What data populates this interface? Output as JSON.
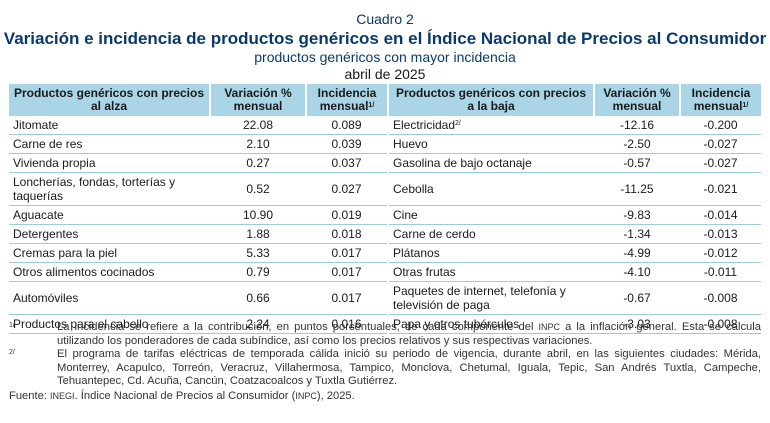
{
  "header": {
    "cuadro": "Cuadro 2",
    "title": "Variación e incidencia de productos genéricos en el Índice Nacional de Precios al Consumidor",
    "subtitle": "productos genéricos con mayor incidencia",
    "period": "abril de 2025"
  },
  "table": {
    "columns": {
      "alza_products": "Productos genéricos con precios al alza",
      "alza_var": "Variación % mensual",
      "alza_inc": "Incidencia mensual",
      "baja_products": "Productos genéricos con precios a la baja",
      "baja_var": "Variación % mensual",
      "baja_inc": "Incidencia mensual",
      "inc_note_mark": "1/"
    },
    "rows": [
      {
        "alza": "Jitomate",
        "alza_var": "22.08",
        "alza_inc": "0.089",
        "baja": "Electricidad",
        "baja_mark": "2/",
        "baja_var": "-12.16",
        "baja_inc": "-0.200"
      },
      {
        "alza": "Carne de res",
        "alza_var": "2.10",
        "alza_inc": "0.039",
        "baja": "Huevo",
        "baja_mark": "",
        "baja_var": "-2.50",
        "baja_inc": "-0.027"
      },
      {
        "alza": "Vivienda propia",
        "alza_var": "0.27",
        "alza_inc": "0.037",
        "baja": "Gasolina de bajo octanaje",
        "baja_mark": "",
        "baja_var": "-0.57",
        "baja_inc": "-0.027"
      },
      {
        "alza": "Loncherías, fondas, torterías y taquerías",
        "alza_var": "0.52",
        "alza_inc": "0.027",
        "baja": "Cebolla",
        "baja_mark": "",
        "baja_var": "-11.25",
        "baja_inc": "-0.021"
      },
      {
        "alza": "Aguacate",
        "alza_var": "10.90",
        "alza_inc": "0.019",
        "baja": "Cine",
        "baja_mark": "",
        "baja_var": "-9.83",
        "baja_inc": "-0.014"
      },
      {
        "alza": "Detergentes",
        "alza_var": "1.88",
        "alza_inc": "0.018",
        "baja": "Carne de cerdo",
        "baja_mark": "",
        "baja_var": "-1.34",
        "baja_inc": "-0.013"
      },
      {
        "alza": "Cremas para la piel",
        "alza_var": "5.33",
        "alza_inc": "0.017",
        "baja": "Plátanos",
        "baja_mark": "",
        "baja_var": "-4.99",
        "baja_inc": "-0.012"
      },
      {
        "alza": "Otros alimentos cocinados",
        "alza_var": "0.79",
        "alza_inc": "0.017",
        "baja": "Otras frutas",
        "baja_mark": "",
        "baja_var": "-4.10",
        "baja_inc": "-0.011"
      },
      {
        "alza": "Automóviles",
        "alza_var": "0.66",
        "alza_inc": "0.017",
        "baja": "Paquetes de internet, telefonía y televisión de paga",
        "baja_mark": "",
        "baja_var": "-0.67",
        "baja_inc": "-0.008"
      },
      {
        "alza": "Productos para el cabello",
        "alza_var": "2.24",
        "alza_inc": "0.016",
        "baja": "Papa y otros tubérculos",
        "baja_mark": "",
        "baja_var": "-3.03",
        "baja_inc": "-0.008"
      }
    ]
  },
  "notes": [
    {
      "mark": "1/",
      "text_a": "La incidencia se refiere a la contribución, en puntos porcentuales, de cada componente del ",
      "sc": "INPC",
      "text_b": " a la inflación general. Esta se calcula utilizando los ponderadores de cada subíndice, así como los precios relativos y sus respectivas variaciones."
    },
    {
      "mark": "2/",
      "text_a": "El programa de tarifas eléctricas de temporada cálida inició su periodo de vigencia, durante abril, en las siguientes ciudades: Mérida, Monterrey, Acapulco, Torreón, Veracruz, Villahermosa, Tampico, Monclova, Chetumal, Iguala, Tepic, San Andrés Tuxtla, Campeche, Tehuantepec, Cd. Acuña, Cancún, Coatzacoalcos y Tuxtla Gutiérrez.",
      "sc": "",
      "text_b": ""
    }
  ],
  "source": {
    "prefix": "Fuente: ",
    "org": "INEGI",
    "middle": ". Índice Nacional de Precios al Consumidor (",
    "abbr": "INPC",
    "suffix": "), 2025."
  }
}
